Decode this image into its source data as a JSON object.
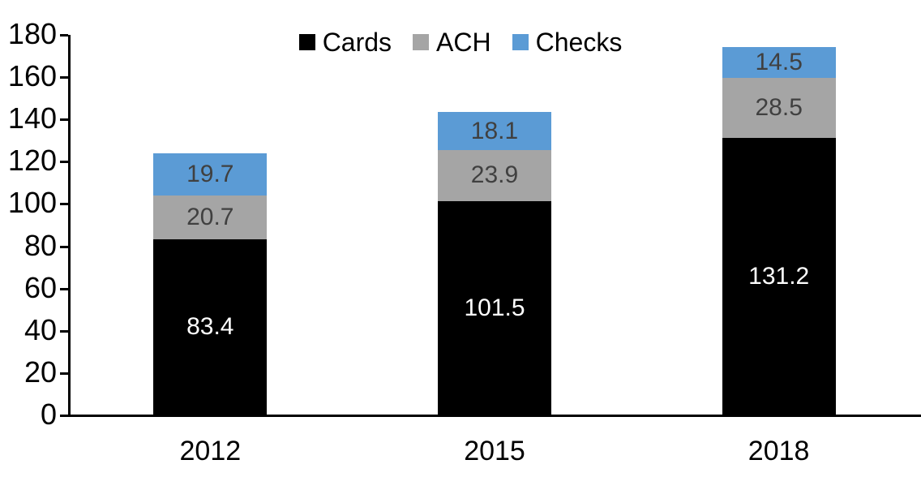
{
  "chart_data": {
    "type": "bar",
    "stacked": true,
    "title": "",
    "xlabel": "",
    "ylabel": "",
    "categories": [
      "2012",
      "2015",
      "2018"
    ],
    "series": [
      {
        "name": "Cards",
        "color": "#000000",
        "label_color": "#ffffff",
        "values": [
          83.4,
          101.5,
          131.2
        ]
      },
      {
        "name": "ACH",
        "color": "#a5a5a5",
        "label_color": "#404040",
        "values": [
          20.7,
          23.9,
          28.5
        ]
      },
      {
        "name": "Checks",
        "color": "#5b9bd5",
        "label_color": "#404040",
        "values": [
          19.7,
          18.1,
          14.5
        ]
      }
    ],
    "ylim": [
      0,
      180
    ],
    "yticks": [
      0,
      20,
      40,
      60,
      80,
      100,
      120,
      140,
      160,
      180
    ],
    "grid": false,
    "legend_position": "top-center",
    "value_label_decimals": 1,
    "axis_color": "#000000"
  }
}
